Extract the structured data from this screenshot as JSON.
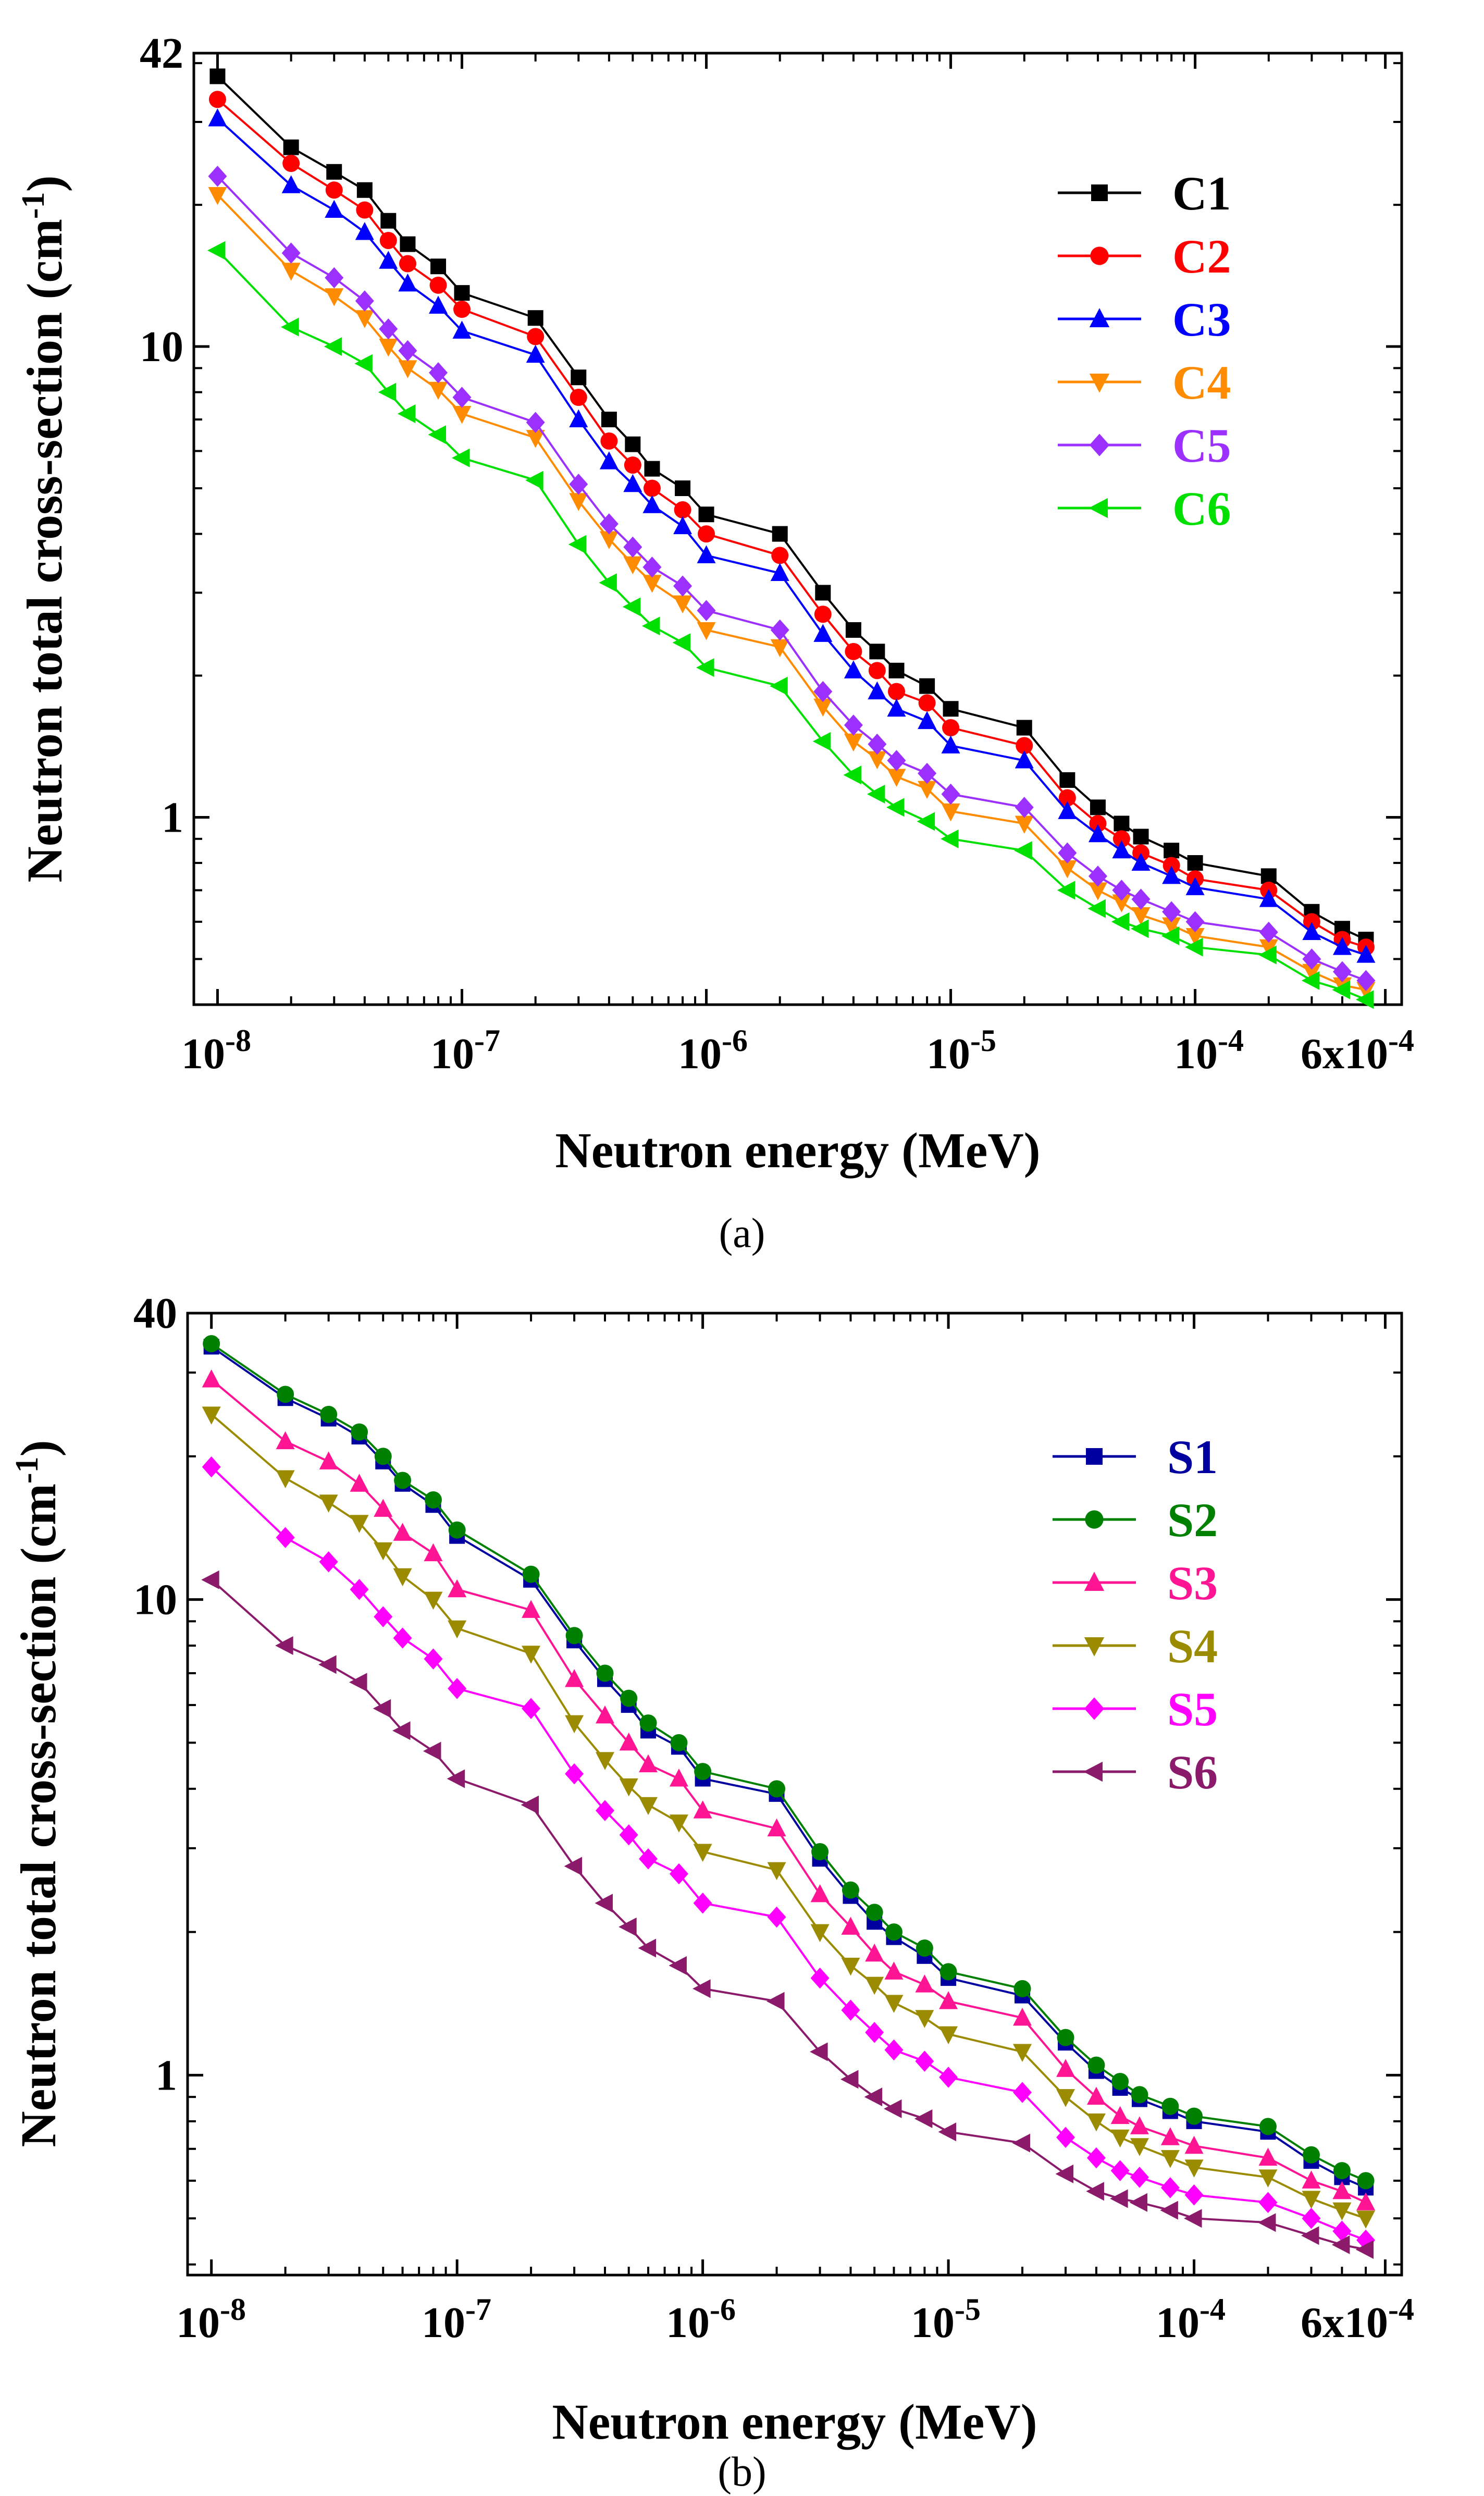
{
  "chart_data": [
    {
      "panel_label": "(a)",
      "type": "line",
      "xscale": "log",
      "yscale": "log",
      "xlabel": "Neutron energy (MeV)",
      "ylabel_main": "Neutron total cross-section (cm",
      "ylabel_sup": "-1",
      "ylabel_tail": ")",
      "xlim": [
        8e-09,
        0.0007
      ],
      "ylim": [
        0.4,
        42
      ],
      "x_ticks": [
        {
          "value": 1e-08,
          "base": "10",
          "exp": "-8"
        },
        {
          "value": 1e-07,
          "base": "10",
          "exp": "-7"
        },
        {
          "value": 1e-06,
          "base": "10",
          "exp": "-6"
        },
        {
          "value": 1e-05,
          "base": "10",
          "exp": "-5"
        },
        {
          "value": 0.0001,
          "base": "10",
          "exp": "-4"
        },
        {
          "value": 0.0006,
          "base": "6x10",
          "exp": "-4"
        }
      ],
      "y_ticks": [
        {
          "value": 1,
          "label": "1"
        },
        {
          "value": 10,
          "label": "10"
        },
        {
          "value": 42,
          "label": "42"
        }
      ],
      "legend_position": "top-right",
      "x": [
        1e-08,
        2e-08,
        3e-08,
        4e-08,
        5e-08,
        6e-08,
        8e-08,
        1e-07,
        2e-07,
        3e-07,
        4e-07,
        5e-07,
        6e-07,
        8e-07,
        1e-06,
        2e-06,
        3e-06,
        4e-06,
        5e-06,
        6e-06,
        8e-06,
        1e-05,
        2e-05,
        3e-05,
        4e-05,
        5e-05,
        6e-05,
        8e-05,
        0.0001,
        0.0002,
        0.0003,
        0.0004,
        0.0005
      ],
      "series": [
        {
          "name": "C1",
          "color": "#000000",
          "marker": "square",
          "values": [
            37.5,
            26.5,
            23.5,
            21.5,
            18.5,
            16.5,
            14.8,
            13.0,
            11.5,
            8.6,
            7.0,
            6.2,
            5.5,
            5.0,
            4.4,
            4.0,
            3.0,
            2.5,
            2.25,
            2.05,
            1.9,
            1.7,
            1.55,
            1.2,
            1.05,
            0.97,
            0.91,
            0.85,
            0.8,
            0.75,
            0.63,
            0.58,
            0.55
          ]
        },
        {
          "name": "C2",
          "color": "#ff0000",
          "marker": "circle",
          "values": [
            33.5,
            24.5,
            21.5,
            19.5,
            16.8,
            15.0,
            13.5,
            12.0,
            10.5,
            7.8,
            6.3,
            5.6,
            5.0,
            4.5,
            4.0,
            3.6,
            2.7,
            2.25,
            2.05,
            1.85,
            1.75,
            1.55,
            1.42,
            1.1,
            0.97,
            0.9,
            0.84,
            0.79,
            0.74,
            0.7,
            0.6,
            0.55,
            0.53
          ]
        },
        {
          "name": "C3",
          "color": "#0000ff",
          "marker": "triangle-up",
          "values": [
            30.5,
            22.0,
            19.5,
            17.5,
            15.2,
            13.6,
            12.2,
            10.8,
            9.6,
            7.0,
            5.7,
            5.1,
            4.6,
            4.15,
            3.6,
            3.3,
            2.45,
            2.05,
            1.85,
            1.7,
            1.6,
            1.42,
            1.32,
            1.03,
            0.92,
            0.85,
            0.8,
            0.75,
            0.71,
            0.67,
            0.57,
            0.53,
            0.51
          ]
        },
        {
          "name": "C4",
          "color": "#ff8c00",
          "marker": "triangle-down",
          "values": [
            21.0,
            14.5,
            12.8,
            11.5,
            10.0,
            9.0,
            8.1,
            7.2,
            6.4,
            4.7,
            3.9,
            3.45,
            3.15,
            2.85,
            2.5,
            2.3,
            1.72,
            1.45,
            1.33,
            1.22,
            1.15,
            1.03,
            0.97,
            0.78,
            0.7,
            0.66,
            0.62,
            0.59,
            0.56,
            0.53,
            0.47,
            0.44,
            0.43
          ]
        },
        {
          "name": "C5",
          "color": "#9b30ff",
          "marker": "diamond",
          "values": [
            23.0,
            15.8,
            14.0,
            12.5,
            10.9,
            9.8,
            8.8,
            7.8,
            6.9,
            5.1,
            4.2,
            3.75,
            3.4,
            3.1,
            2.75,
            2.5,
            1.85,
            1.57,
            1.43,
            1.32,
            1.24,
            1.12,
            1.05,
            0.84,
            0.75,
            0.7,
            0.67,
            0.63,
            0.6,
            0.57,
            0.5,
            0.47,
            0.45
          ]
        },
        {
          "name": "C6",
          "color": "#00e000",
          "marker": "triangle-left",
          "values": [
            16.0,
            11.0,
            10.0,
            9.2,
            8.0,
            7.2,
            6.5,
            5.8,
            5.2,
            3.8,
            3.15,
            2.8,
            2.55,
            2.35,
            2.08,
            1.9,
            1.45,
            1.23,
            1.12,
            1.05,
            0.98,
            0.9,
            0.85,
            0.7,
            0.64,
            0.6,
            0.58,
            0.56,
            0.53,
            0.51,
            0.45,
            0.43,
            0.41
          ]
        }
      ]
    },
    {
      "panel_label": "(b)",
      "type": "line",
      "xscale": "log",
      "yscale": "log",
      "xlabel": "Neutron energy (MeV)",
      "ylabel_main": "Neutron total cross-section (cm",
      "ylabel_sup": "-1",
      "ylabel_tail": ")",
      "xlim": [
        8e-09,
        0.0007
      ],
      "ylim": [
        0.38,
        40
      ],
      "x_ticks": [
        {
          "value": 1e-08,
          "base": "10",
          "exp": "-8"
        },
        {
          "value": 1e-07,
          "base": "10",
          "exp": "-7"
        },
        {
          "value": 1e-06,
          "base": "10",
          "exp": "-6"
        },
        {
          "value": 1e-05,
          "base": "10",
          "exp": "-5"
        },
        {
          "value": 0.0001,
          "base": "10",
          "exp": "-4"
        },
        {
          "value": 0.0006,
          "base": "6x10",
          "exp": "-4"
        }
      ],
      "y_ticks": [
        {
          "value": 1,
          "label": "1"
        },
        {
          "value": 10,
          "label": "10"
        },
        {
          "value": 40,
          "label": "40"
        }
      ],
      "legend_position": "top-right",
      "x": [
        1e-08,
        2e-08,
        3e-08,
        4e-08,
        5e-08,
        6e-08,
        8e-08,
        1e-07,
        2e-07,
        3e-07,
        4e-07,
        5e-07,
        6e-07,
        8e-07,
        1e-06,
        2e-06,
        3e-06,
        4e-06,
        5e-06,
        6e-06,
        8e-06,
        1e-05,
        2e-05,
        3e-05,
        4e-05,
        5e-05,
        6e-05,
        8e-05,
        0.0001,
        0.0002,
        0.0003,
        0.0004,
        0.0005
      ],
      "series": [
        {
          "name": "S1",
          "color": "#0000a0",
          "marker": "square",
          "values": [
            34.0,
            26.5,
            24.0,
            22.0,
            19.5,
            17.5,
            15.8,
            13.6,
            11.0,
            8.2,
            6.8,
            6.0,
            5.3,
            4.9,
            4.2,
            3.9,
            2.85,
            2.38,
            2.1,
            1.95,
            1.78,
            1.6,
            1.47,
            1.17,
            1.02,
            0.94,
            0.89,
            0.84,
            0.8,
            0.76,
            0.66,
            0.61,
            0.58
          ]
        },
        {
          "name": "S2",
          "color": "#008000",
          "marker": "circle",
          "values": [
            34.5,
            27.0,
            24.5,
            22.5,
            20.0,
            17.8,
            16.2,
            14.0,
            11.3,
            8.4,
            7.0,
            6.2,
            5.5,
            5.0,
            4.35,
            4.0,
            2.95,
            2.45,
            2.2,
            2.0,
            1.85,
            1.65,
            1.52,
            1.2,
            1.05,
            0.97,
            0.91,
            0.86,
            0.82,
            0.78,
            0.68,
            0.63,
            0.6
          ]
        },
        {
          "name": "S3",
          "color": "#ff1493",
          "marker": "triangle-up",
          "values": [
            29.0,
            21.5,
            19.5,
            17.5,
            15.5,
            13.8,
            12.5,
            10.5,
            9.5,
            6.8,
            5.7,
            5.0,
            4.5,
            4.2,
            3.6,
            3.3,
            2.4,
            2.05,
            1.8,
            1.65,
            1.55,
            1.43,
            1.32,
            1.03,
            0.9,
            0.82,
            0.78,
            0.74,
            0.71,
            0.67,
            0.6,
            0.57,
            0.54
          ]
        },
        {
          "name": "S4",
          "color": "#9b8b00",
          "marker": "triangle-down",
          "values": [
            24.5,
            18.0,
            16.0,
            14.5,
            12.7,
            11.2,
            10.0,
            8.7,
            7.7,
            5.5,
            4.6,
            4.05,
            3.7,
            3.4,
            2.95,
            2.7,
            2.0,
            1.7,
            1.55,
            1.42,
            1.32,
            1.22,
            1.12,
            0.9,
            0.8,
            0.74,
            0.71,
            0.67,
            0.64,
            0.61,
            0.55,
            0.52,
            0.5
          ]
        },
        {
          "name": "S5",
          "color": "#ff00ff",
          "marker": "diamond",
          "values": [
            19.0,
            13.5,
            12.0,
            10.5,
            9.2,
            8.3,
            7.5,
            6.5,
            5.9,
            4.3,
            3.6,
            3.2,
            2.85,
            2.65,
            2.3,
            2.15,
            1.6,
            1.37,
            1.23,
            1.13,
            1.07,
            0.99,
            0.92,
            0.74,
            0.67,
            0.63,
            0.61,
            0.58,
            0.56,
            0.54,
            0.5,
            0.47,
            0.45
          ]
        },
        {
          "name": "S6",
          "color": "#8b1a6b",
          "marker": "triangle-left",
          "values": [
            11.0,
            8.0,
            7.3,
            6.7,
            5.9,
            5.3,
            4.8,
            4.2,
            3.7,
            2.75,
            2.3,
            2.05,
            1.85,
            1.7,
            1.52,
            1.43,
            1.12,
            0.98,
            0.9,
            0.85,
            0.81,
            0.76,
            0.72,
            0.62,
            0.57,
            0.55,
            0.54,
            0.52,
            0.5,
            0.49,
            0.46,
            0.44,
            0.43
          ]
        }
      ]
    }
  ]
}
